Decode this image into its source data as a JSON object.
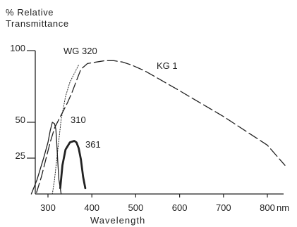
{
  "chart_data": {
    "type": "line",
    "title": "",
    "ylabel_lines": [
      "% Relative",
      "Transmittance"
    ],
    "xlabel": "Wavelength",
    "x_unit": "nm",
    "xlim": [
      260,
      840
    ],
    "ylim": [
      0,
      100
    ],
    "x_ticks": [
      300,
      400,
      500,
      600,
      700,
      800
    ],
    "y_ticks": [
      {
        "value": 100,
        "label": "100"
      },
      {
        "value": 50,
        "label": "50"
      },
      {
        "value": 25,
        "label": "25"
      }
    ],
    "grid": false,
    "series": [
      {
        "name": "KG 1",
        "style": "dashed",
        "x": [
          274,
          285,
          295,
          305,
          315,
          325,
          335,
          345,
          355,
          365,
          375,
          390,
          410,
          430,
          450,
          470,
          490,
          520,
          560,
          600,
          650,
          700,
          750,
          800,
          840
        ],
        "y": [
          1,
          12,
          24,
          36,
          46,
          52,
          58,
          64,
          71,
          79,
          87,
          91,
          92,
          93,
          93,
          92,
          90,
          86,
          79,
          72,
          63,
          54,
          44,
          34,
          20
        ]
      },
      {
        "name": "WG 320",
        "style": "dotted",
        "x": [
          310,
          315,
          320,
          330,
          340,
          350,
          360,
          370
        ],
        "y": [
          0,
          10,
          24,
          52,
          68,
          78,
          84,
          90
        ]
      },
      {
        "name": "310",
        "style": "solid-thin",
        "x": [
          262,
          275,
          290,
          300,
          305,
          310,
          315,
          318,
          320,
          322,
          325,
          330
        ],
        "y": [
          0,
          10,
          25,
          36,
          44,
          50,
          49,
          45,
          36,
          24,
          10,
          0
        ]
      },
      {
        "name": "361",
        "style": "solid-thick",
        "x": [
          328,
          333,
          340,
          350,
          360,
          365,
          370,
          375,
          380,
          385
        ],
        "y": [
          4,
          20,
          31,
          36,
          37,
          36,
          32,
          24,
          12,
          4
        ]
      }
    ]
  }
}
